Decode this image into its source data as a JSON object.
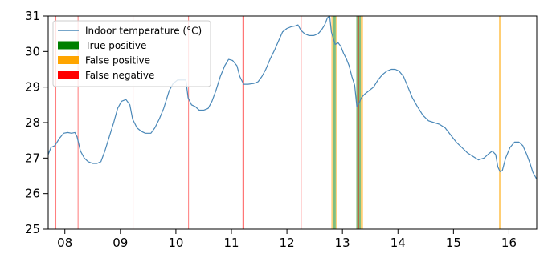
{
  "chart_data": {
    "type": "line",
    "title": "",
    "xlabel": "",
    "ylabel": "",
    "xlim": [
      7.7,
      16.5
    ],
    "ylim": [
      25,
      31
    ],
    "grid": false,
    "legend_position": "top-left",
    "x_ticks": [
      8,
      9,
      10,
      11,
      12,
      13,
      14,
      15,
      16
    ],
    "x_tick_labels": [
      "08",
      "09",
      "10",
      "11",
      "12",
      "13",
      "14",
      "15",
      "16"
    ],
    "y_ticks": [
      25,
      26,
      27,
      28,
      29,
      30,
      31
    ],
    "y_tick_labels": [
      "25",
      "26",
      "27",
      "28",
      "29",
      "30",
      "31"
    ],
    "series": [
      {
        "name": "Indoor temperature (°C)",
        "color": "#4a88b8",
        "points": [
          [
            7.7,
            27.1
          ],
          [
            7.75,
            27.3
          ],
          [
            7.82,
            27.35
          ],
          [
            7.9,
            27.55
          ],
          [
            7.98,
            27.7
          ],
          [
            8.05,
            27.72
          ],
          [
            8.12,
            27.7
          ],
          [
            8.18,
            27.72
          ],
          [
            8.22,
            27.6
          ],
          [
            8.28,
            27.2
          ],
          [
            8.35,
            27.0
          ],
          [
            8.42,
            26.9
          ],
          [
            8.5,
            26.85
          ],
          [
            8.58,
            26.85
          ],
          [
            8.65,
            26.9
          ],
          [
            8.72,
            27.2
          ],
          [
            8.8,
            27.6
          ],
          [
            8.88,
            28.0
          ],
          [
            8.95,
            28.4
          ],
          [
            9.02,
            28.6
          ],
          [
            9.1,
            28.65
          ],
          [
            9.17,
            28.5
          ],
          [
            9.22,
            28.1
          ],
          [
            9.3,
            27.85
          ],
          [
            9.38,
            27.75
          ],
          [
            9.45,
            27.7
          ],
          [
            9.55,
            27.7
          ],
          [
            9.62,
            27.85
          ],
          [
            9.7,
            28.1
          ],
          [
            9.78,
            28.4
          ],
          [
            9.88,
            28.9
          ],
          [
            9.95,
            29.1
          ],
          [
            10.03,
            29.2
          ],
          [
            10.1,
            29.2
          ],
          [
            10.18,
            29.2
          ],
          [
            10.22,
            28.7
          ],
          [
            10.28,
            28.5
          ],
          [
            10.35,
            28.45
          ],
          [
            10.42,
            28.35
          ],
          [
            10.5,
            28.35
          ],
          [
            10.58,
            28.4
          ],
          [
            10.65,
            28.6
          ],
          [
            10.72,
            28.9
          ],
          [
            10.8,
            29.3
          ],
          [
            10.88,
            29.6
          ],
          [
            10.95,
            29.78
          ],
          [
            11.02,
            29.75
          ],
          [
            11.1,
            29.6
          ],
          [
            11.15,
            29.3
          ],
          [
            11.22,
            29.08
          ],
          [
            11.3,
            29.08
          ],
          [
            11.4,
            29.1
          ],
          [
            11.48,
            29.15
          ],
          [
            11.55,
            29.3
          ],
          [
            11.62,
            29.5
          ],
          [
            11.7,
            29.8
          ],
          [
            11.78,
            30.05
          ],
          [
            11.85,
            30.3
          ],
          [
            11.92,
            30.55
          ],
          [
            12.0,
            30.65
          ],
          [
            12.08,
            30.7
          ],
          [
            12.15,
            30.72
          ],
          [
            12.2,
            30.75
          ],
          [
            12.25,
            30.6
          ],
          [
            12.32,
            30.5
          ],
          [
            12.4,
            30.45
          ],
          [
            12.48,
            30.45
          ],
          [
            12.56,
            30.5
          ],
          [
            12.62,
            30.6
          ],
          [
            12.68,
            30.75
          ],
          [
            12.73,
            30.95
          ],
          [
            12.77,
            31.0
          ],
          [
            12.8,
            30.55
          ],
          [
            12.83,
            30.4
          ],
          [
            12.87,
            30.2
          ],
          [
            12.92,
            30.25
          ],
          [
            12.97,
            30.15
          ],
          [
            13.02,
            29.95
          ],
          [
            13.07,
            29.8
          ],
          [
            13.12,
            29.6
          ],
          [
            13.17,
            29.3
          ],
          [
            13.22,
            29.05
          ],
          [
            13.26,
            28.45
          ],
          [
            13.3,
            28.55
          ],
          [
            13.34,
            28.7
          ],
          [
            13.4,
            28.8
          ],
          [
            13.48,
            28.9
          ],
          [
            13.56,
            29.0
          ],
          [
            13.64,
            29.2
          ],
          [
            13.72,
            29.35
          ],
          [
            13.8,
            29.45
          ],
          [
            13.88,
            29.5
          ],
          [
            13.95,
            29.5
          ],
          [
            14.02,
            29.45
          ],
          [
            14.1,
            29.3
          ],
          [
            14.18,
            29.0
          ],
          [
            14.26,
            28.7
          ],
          [
            14.35,
            28.45
          ],
          [
            14.45,
            28.2
          ],
          [
            14.55,
            28.05
          ],
          [
            14.65,
            28.0
          ],
          [
            14.75,
            27.95
          ],
          [
            14.85,
            27.85
          ],
          [
            14.95,
            27.65
          ],
          [
            15.05,
            27.45
          ],
          [
            15.15,
            27.3
          ],
          [
            15.25,
            27.15
          ],
          [
            15.35,
            27.05
          ],
          [
            15.45,
            26.95
          ],
          [
            15.55,
            27.0
          ],
          [
            15.62,
            27.1
          ],
          [
            15.7,
            27.2
          ],
          [
            15.76,
            27.1
          ],
          [
            15.8,
            26.75
          ],
          [
            15.84,
            26.62
          ],
          [
            15.88,
            26.65
          ],
          [
            15.94,
            27.0
          ],
          [
            16.02,
            27.3
          ],
          [
            16.1,
            27.45
          ],
          [
            16.18,
            27.45
          ],
          [
            16.25,
            27.35
          ],
          [
            16.32,
            27.1
          ],
          [
            16.38,
            26.85
          ],
          [
            16.43,
            26.6
          ],
          [
            16.5,
            26.4
          ]
        ]
      }
    ],
    "legend_entries": [
      {
        "label": "Indoor temperature (°C)",
        "kind": "line",
        "color": "#4a88b8"
      },
      {
        "label": "True positive",
        "kind": "patch",
        "color": "#008000"
      },
      {
        "label": "False positive",
        "kind": "patch",
        "color": "#ffa500"
      },
      {
        "label": "False negative",
        "kind": "patch",
        "color": "#ff0000"
      }
    ],
    "event_bands": [
      {
        "category": "False negative",
        "x_start": 7.83,
        "x_end": 7.845,
        "color": "#ff0000",
        "opacity": 0.5
      },
      {
        "category": "False negative",
        "x_start": 8.23,
        "x_end": 8.245,
        "color": "#ff0000",
        "opacity": 0.5
      },
      {
        "category": "False negative",
        "x_start": 9.22,
        "x_end": 9.235,
        "color": "#ff0000",
        "opacity": 0.5
      },
      {
        "category": "False negative",
        "x_start": 10.22,
        "x_end": 10.235,
        "color": "#ff0000",
        "opacity": 0.5
      },
      {
        "category": "False negative",
        "x_start": 11.2,
        "x_end": 11.23,
        "color": "#ff0000",
        "opacity": 0.6
      },
      {
        "category": "False negative",
        "x_start": 12.25,
        "x_end": 12.26,
        "color": "#ff0000",
        "opacity": 0.45
      },
      {
        "category": "True positive",
        "x_start": 12.83,
        "x_end": 12.88,
        "color": "#008000",
        "opacity": 0.5
      },
      {
        "category": "False positive",
        "x_start": 12.8,
        "x_end": 12.83,
        "color": "#ffa500",
        "opacity": 0.5
      },
      {
        "category": "False positive",
        "x_start": 12.88,
        "x_end": 12.91,
        "color": "#ffa500",
        "opacity": 0.5
      },
      {
        "category": "True positive",
        "x_start": 13.25,
        "x_end": 13.33,
        "color": "#008000",
        "opacity": 0.5
      },
      {
        "category": "False negative",
        "x_start": 13.27,
        "x_end": 13.3,
        "color": "#ff0000",
        "opacity": 0.5
      },
      {
        "category": "False positive",
        "x_start": 13.33,
        "x_end": 13.37,
        "color": "#ffa500",
        "opacity": 0.55
      },
      {
        "category": "False positive",
        "x_start": 15.82,
        "x_end": 15.86,
        "color": "#ffa500",
        "opacity": 0.55
      }
    ]
  }
}
